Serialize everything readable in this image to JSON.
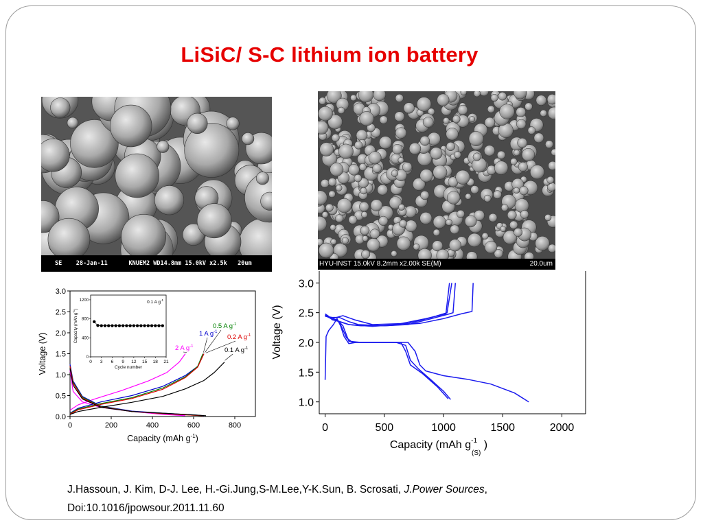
{
  "slide": {
    "title": "LiSiC/ S-C  lithium ion battery",
    "sem_left_caption": "SE    28-Jan-11      KNUEM2 WD14.8mm 15.0kV x2.5k   20um",
    "sem_right_caption": "HYU-INST 15.0kV 8.2mm x2.00k SE(M)",
    "sem_right_scale": "20.0um",
    "citation_authors": "J.Hassoun, J. Kim, D-J. Lee, H.-Gi.Jung,S-M.Lee,Y-K.Sun, B. Scrosati, ",
    "citation_journal": "J.Power Sources",
    "citation_comma": ",",
    "citation_doi": "Doi:10.1016/jpowsour.2011.11.60"
  },
  "chart_data": [
    {
      "type": "line",
      "xlabel": "Capacity (mAh g",
      "xlabel_sup": "-1",
      "xlabel_end": ")",
      "ylabel": "Voltage (V)",
      "xlim": [
        0,
        900
      ],
      "ylim": [
        0,
        3.0
      ],
      "x_ticks": [
        "0",
        "200",
        "400",
        "600",
        "800"
      ],
      "y_ticks": [
        "0.0",
        "0.5",
        "1.0",
        "1.5",
        "2.0",
        "2.5",
        "3.0"
      ],
      "series": [
        {
          "name": "2 A g",
          "sup": "-1",
          "color": "#ff00ff",
          "discharge": [
            [
              0,
              1.1
            ],
            [
              15,
              0.6
            ],
            [
              60,
              0.35
            ],
            [
              150,
              0.22
            ],
            [
              300,
              0.12
            ],
            [
              450,
              0.05
            ],
            [
              560,
              0.02
            ]
          ],
          "charge": [
            [
              0,
              0.15
            ],
            [
              40,
              0.28
            ],
            [
              120,
              0.42
            ],
            [
              250,
              0.62
            ],
            [
              380,
              0.85
            ],
            [
              470,
              1.05
            ],
            [
              530,
              1.3
            ],
            [
              560,
              1.5
            ]
          ]
        },
        {
          "name": "1 A g",
          "sup": "-1",
          "color": "#0000cc",
          "discharge": [
            [
              0,
              1.25
            ],
            [
              15,
              0.85
            ],
            [
              60,
              0.48
            ],
            [
              150,
              0.25
            ],
            [
              300,
              0.13
            ],
            [
              450,
              0.08
            ],
            [
              600,
              0.04
            ],
            [
              650,
              0.02
            ]
          ],
          "charge": [
            [
              0,
              0.08
            ],
            [
              40,
              0.2
            ],
            [
              150,
              0.35
            ],
            [
              300,
              0.5
            ],
            [
              450,
              0.72
            ],
            [
              560,
              0.98
            ],
            [
              620,
              1.2
            ],
            [
              650,
              1.5
            ]
          ]
        },
        {
          "name": "0.5 A g",
          "sup": "-1",
          "color": "#008000",
          "discharge": [
            [
              0,
              1.2
            ],
            [
              15,
              0.82
            ],
            [
              60,
              0.46
            ],
            [
              150,
              0.24
            ],
            [
              300,
              0.12
            ],
            [
              450,
              0.07
            ],
            [
              600,
              0.03
            ],
            [
              640,
              0.02
            ]
          ],
          "charge": [
            [
              0,
              0.07
            ],
            [
              40,
              0.18
            ],
            [
              150,
              0.31
            ],
            [
              300,
              0.45
            ],
            [
              450,
              0.68
            ],
            [
              560,
              0.95
            ],
            [
              620,
              1.2
            ],
            [
              645,
              1.5
            ]
          ]
        },
        {
          "name": "0.2 A g",
          "sup": "-1",
          "color": "#dd0000",
          "discharge": [
            [
              0,
              1.2
            ],
            [
              15,
              0.8
            ],
            [
              60,
              0.44
            ],
            [
              150,
              0.23
            ],
            [
              300,
              0.12
            ],
            [
              450,
              0.07
            ],
            [
              600,
              0.03
            ],
            [
              645,
              0.02
            ]
          ],
          "charge": [
            [
              0,
              0.06
            ],
            [
              40,
              0.16
            ],
            [
              150,
              0.29
            ],
            [
              300,
              0.43
            ],
            [
              450,
              0.65
            ],
            [
              560,
              0.93
            ],
            [
              620,
              1.18
            ],
            [
              650,
              1.5
            ]
          ]
        },
        {
          "name": "0.1 A g",
          "sup": "-1",
          "color": "#000000",
          "discharge": [
            [
              0,
              1.15
            ],
            [
              15,
              0.75
            ],
            [
              60,
              0.42
            ],
            [
              150,
              0.22
            ],
            [
              300,
              0.12
            ],
            [
              450,
              0.08
            ],
            [
              600,
              0.04
            ],
            [
              660,
              0.02
            ]
          ],
          "charge": [
            [
              0,
              0.05
            ],
            [
              40,
              0.12
            ],
            [
              150,
              0.22
            ],
            [
              300,
              0.34
            ],
            [
              450,
              0.48
            ],
            [
              560,
              0.66
            ],
            [
              650,
              0.86
            ],
            [
              700,
              1.05
            ],
            [
              730,
              1.2
            ],
            [
              750,
              1.3
            ]
          ]
        }
      ],
      "inset": {
        "label": "0.1 A g",
        "label_sup": "-1",
        "xlabel": "Cycle number",
        "ylabel": "Capacity (mAh g",
        "ylabel_sup": "-1",
        "ylabel_end": ")",
        "xlim": [
          0,
          21
        ],
        "ylim": [
          0,
          1300
        ],
        "x_ticks": [
          "0",
          "3",
          "6",
          "9",
          "12",
          "15",
          "18",
          "21"
        ],
        "y_ticks": [
          "0",
          "400",
          "800",
          "1200"
        ],
        "x": [
          1,
          2,
          3,
          4,
          5,
          6,
          7,
          8,
          9,
          10,
          11,
          12,
          13,
          14,
          15,
          16,
          17,
          18,
          19,
          20
        ],
        "values": [
          740,
          660,
          655,
          655,
          655,
          655,
          655,
          655,
          655,
          655,
          655,
          655,
          655,
          655,
          655,
          655,
          655,
          655,
          655,
          655
        ]
      }
    },
    {
      "type": "line",
      "xlabel": "Capacity (mAh g",
      "xlabel_sup": "-1",
      "xlabel_sub": "(S)",
      "xlabel_end": " )",
      "ylabel": "Voltage (V)",
      "xlim": [
        -50,
        2200
      ],
      "ylim": [
        0.8,
        3.2
      ],
      "x_ticks": [
        "0",
        "500",
        "1000",
        "1500",
        "2000"
      ],
      "y_ticks": [
        "1.0",
        "1.5",
        "2.0",
        "2.5",
        "3.0"
      ],
      "series": [
        {
          "name": "",
          "color": "#1a1aee",
          "points": [
            [
              0,
              1.37
            ],
            [
              8,
              2.1
            ],
            [
              30,
              2.2
            ],
            [
              70,
              2.3
            ],
            [
              100,
              2.4
            ],
            [
              130,
              2.28
            ],
            [
              160,
              2.1
            ],
            [
              200,
              1.98
            ],
            [
              260,
              2.0
            ],
            [
              500,
              2.0
            ],
            [
              700,
              2.0
            ],
            [
              760,
              1.85
            ],
            [
              800,
              1.62
            ],
            [
              850,
              1.52
            ],
            [
              1000,
              1.44
            ],
            [
              1200,
              1.38
            ],
            [
              1400,
              1.3
            ],
            [
              1600,
              1.15
            ],
            [
              1720,
              1.0
            ]
          ]
        },
        {
          "name": "",
          "color": "#1a1aee",
          "points": [
            [
              0,
              2.48
            ],
            [
              30,
              2.44
            ],
            [
              60,
              2.38
            ],
            [
              100,
              2.36
            ],
            [
              200,
              2.3
            ],
            [
              300,
              2.28
            ],
            [
              500,
              2.28
            ],
            [
              800,
              2.32
            ],
            [
              1000,
              2.4
            ],
            [
              1150,
              2.48
            ],
            [
              1240,
              2.52
            ],
            [
              1250,
              3.0
            ]
          ]
        },
        {
          "name": "",
          "color": "#1a1aee",
          "points": [
            [
              0,
              2.46
            ],
            [
              50,
              2.4
            ],
            [
              80,
              2.38
            ],
            [
              110,
              2.36
            ],
            [
              150,
              2.28
            ],
            [
              200,
              2.02
            ],
            [
              300,
              2.0
            ],
            [
              600,
              2.0
            ],
            [
              680,
              1.95
            ],
            [
              720,
              1.7
            ],
            [
              790,
              1.55
            ],
            [
              900,
              1.36
            ],
            [
              1000,
              1.18
            ],
            [
              1060,
              1.04
            ]
          ]
        },
        {
          "name": "",
          "color": "#1a1aee",
          "points": [
            [
              0,
              2.45
            ],
            [
              50,
              2.4
            ],
            [
              100,
              2.38
            ],
            [
              130,
              2.3
            ],
            [
              180,
              2.08
            ],
            [
              230,
              2.0
            ],
            [
              400,
              2.0
            ],
            [
              640,
              2.0
            ],
            [
              680,
              1.85
            ],
            [
              720,
              1.62
            ],
            [
              820,
              1.48
            ],
            [
              950,
              1.25
            ],
            [
              1040,
              1.05
            ]
          ]
        },
        {
          "name": "",
          "color": "#1a1aee",
          "points": [
            [
              0,
              2.44
            ],
            [
              60,
              2.42
            ],
            [
              120,
              2.42
            ],
            [
              200,
              2.35
            ],
            [
              280,
              2.3
            ],
            [
              500,
              2.28
            ],
            [
              700,
              2.3
            ],
            [
              900,
              2.4
            ],
            [
              1050,
              2.48
            ],
            [
              1080,
              2.5
            ],
            [
              1100,
              3.0
            ]
          ]
        },
        {
          "name": "",
          "color": "#1a1aee",
          "points": [
            [
              0,
              2.46
            ],
            [
              60,
              2.4
            ],
            [
              150,
              2.45
            ],
            [
              250,
              2.38
            ],
            [
              400,
              2.3
            ],
            [
              700,
              2.32
            ],
            [
              900,
              2.42
            ],
            [
              1030,
              2.5
            ],
            [
              1070,
              3.0
            ]
          ]
        },
        {
          "name": "",
          "color": "#1a1aee",
          "points": [
            [
              0,
              2.45
            ],
            [
              80,
              2.38
            ],
            [
              200,
              2.3
            ],
            [
              400,
              2.27
            ],
            [
              600,
              2.3
            ],
            [
              850,
              2.4
            ],
            [
              1020,
              2.48
            ],
            [
              1050,
              3.0
            ]
          ]
        }
      ]
    }
  ]
}
